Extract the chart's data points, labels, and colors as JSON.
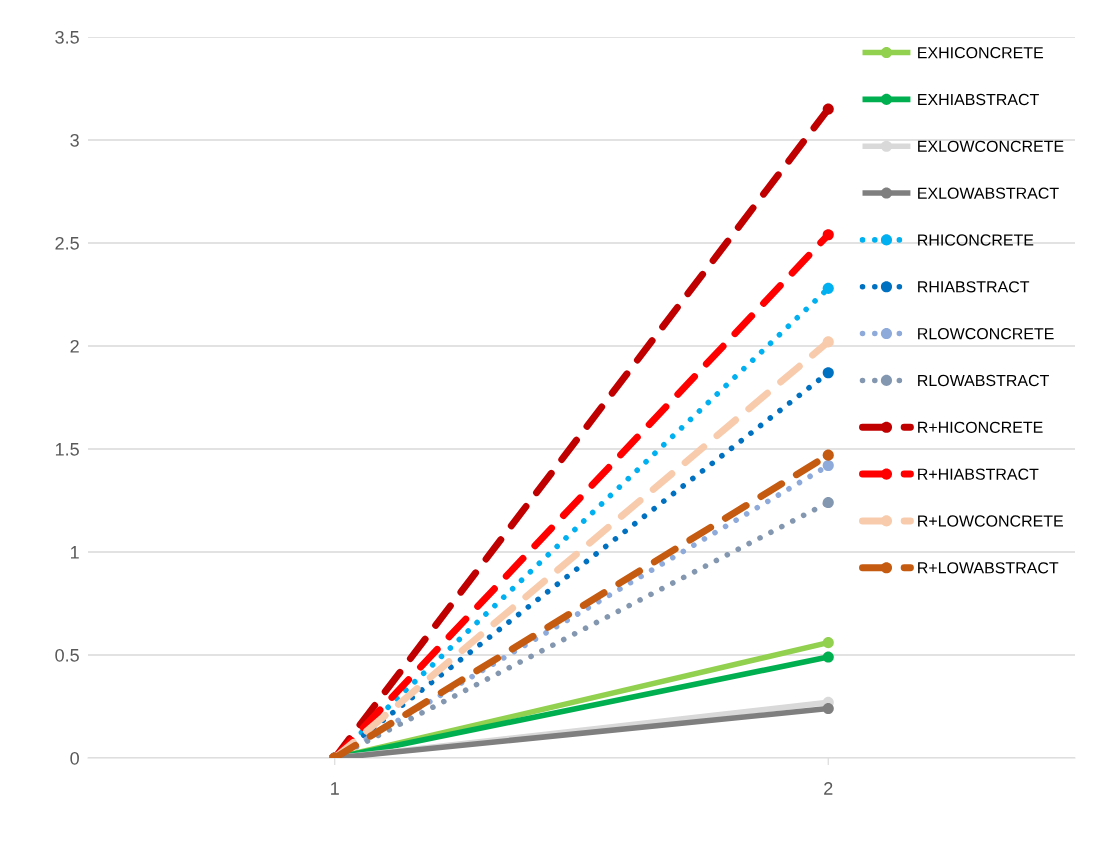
{
  "chart_data": {
    "type": "line",
    "x": [
      1,
      2
    ],
    "xlim": [
      0.5,
      2.5
    ],
    "xticks": [
      1,
      2
    ],
    "ylim": [
      0,
      3.5
    ],
    "yticks": [
      0,
      0.5,
      1,
      1.5,
      2,
      2.5,
      3,
      3.5
    ],
    "grid": "y",
    "legend": "right",
    "marker": "circle",
    "series": [
      {
        "name": "EXHICONCRETE",
        "color": "#92d050",
        "line_style": "solid",
        "values": [
          0,
          0.56
        ]
      },
      {
        "name": "EXHIABSTRACT",
        "color": "#00b050",
        "line_style": "solid",
        "values": [
          0,
          0.49
        ]
      },
      {
        "name": "EXLOWCONCRETE",
        "color": "#d9d9d9",
        "line_style": "solid",
        "values": [
          0,
          0.27
        ]
      },
      {
        "name": "EXLOWABSTRACT",
        "color": "#7f7f7f",
        "line_style": "solid",
        "values": [
          0,
          0.24
        ]
      },
      {
        "name": "RHICONCRETE",
        "color": "#00b0f0",
        "line_style": "dotted",
        "values": [
          0,
          2.28
        ]
      },
      {
        "name": "RHIABSTRACT",
        "color": "#0070c0",
        "line_style": "dotted",
        "values": [
          0,
          1.87
        ]
      },
      {
        "name": "RLOWCONCRETE",
        "color": "#8eaadb",
        "line_style": "dotted",
        "values": [
          0,
          1.42
        ]
      },
      {
        "name": "RLOWABSTRACT",
        "color": "#8497b0",
        "line_style": "dotted",
        "values": [
          0,
          1.24
        ]
      },
      {
        "name": "R+HICONCRETE",
        "color": "#c00000",
        "line_style": "dashed",
        "values": [
          0,
          3.15
        ]
      },
      {
        "name": "R+HIABSTRACT",
        "color": "#ff0000",
        "line_style": "dashed",
        "values": [
          0,
          2.54
        ]
      },
      {
        "name": "R+LOWCONCRETE",
        "color": "#f8cbad",
        "line_style": "dashed",
        "values": [
          0,
          2.02
        ]
      },
      {
        "name": "R+LOWABSTRACT",
        "color": "#c55a11",
        "line_style": "dashed",
        "values": [
          0,
          1.47
        ]
      }
    ]
  }
}
